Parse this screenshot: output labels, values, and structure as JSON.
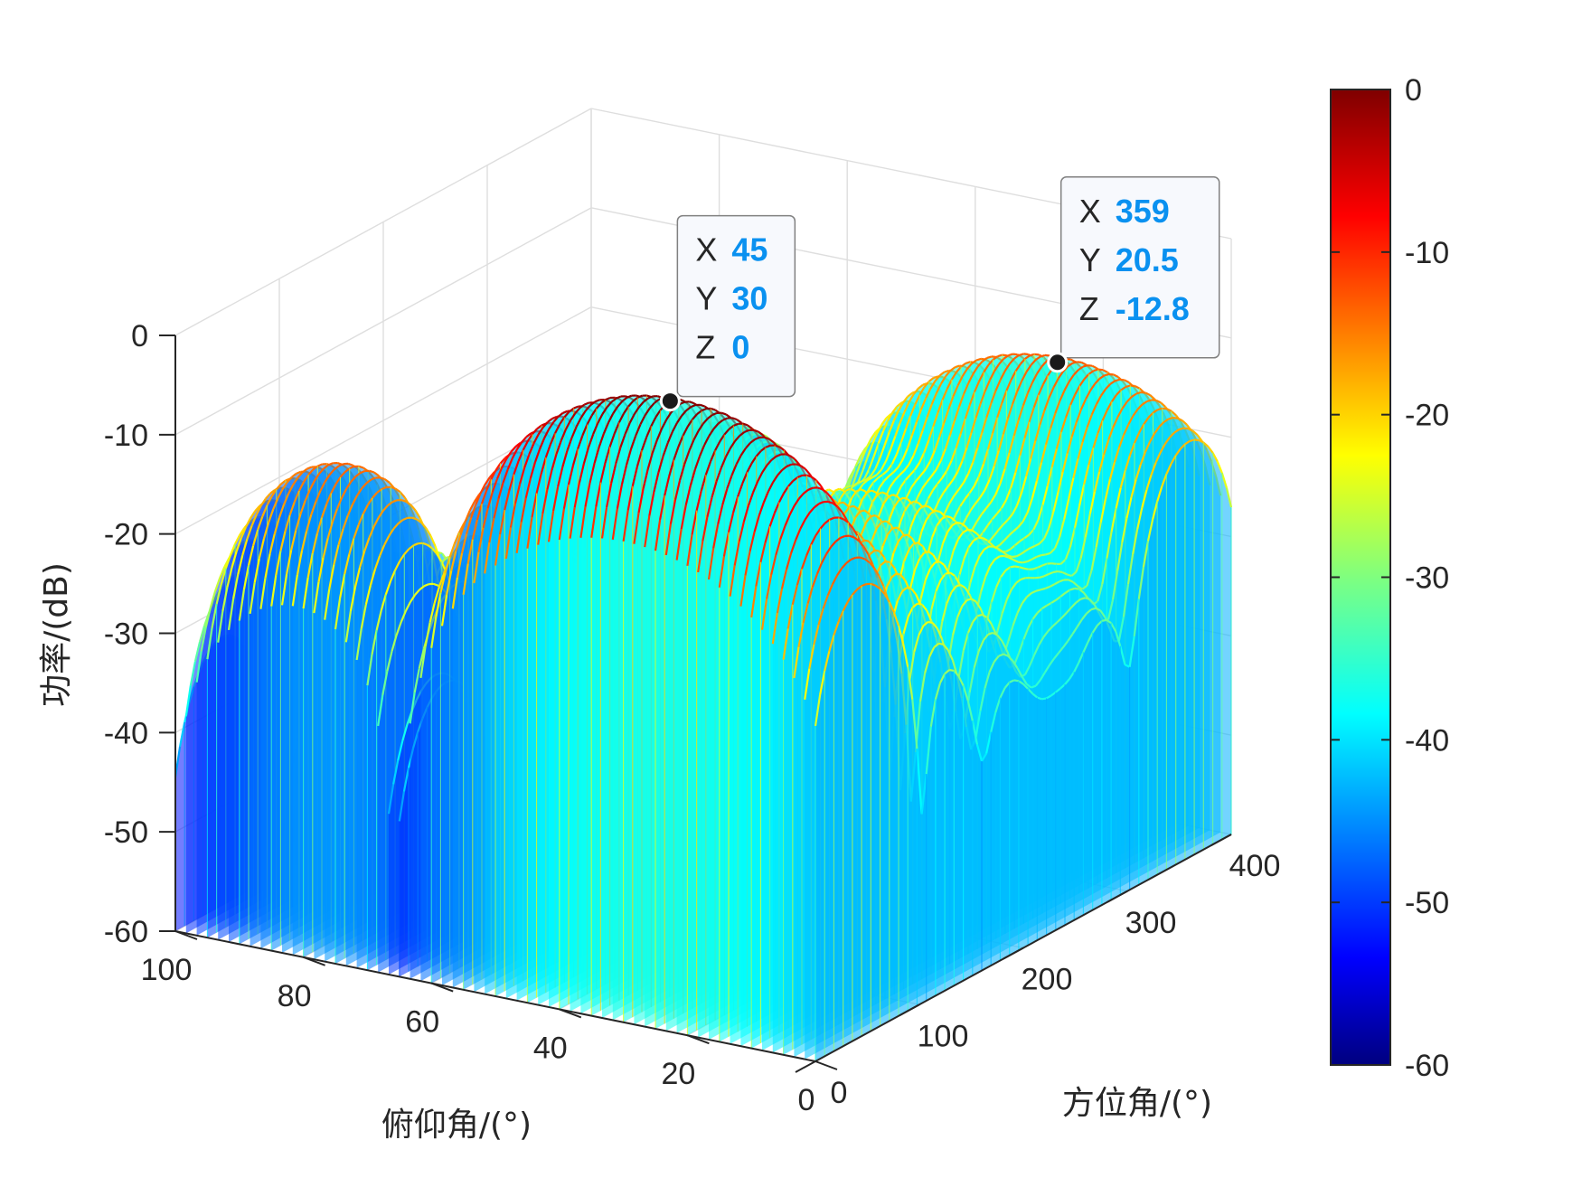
{
  "chart_data": {
    "type": "surface",
    "title": "",
    "xlabel": "方位角/(°)",
    "ylabel": "俯仰角/(°)",
    "zlabel": "功率/(dB)",
    "xlim": [
      0,
      400
    ],
    "ylim": [
      0,
      100
    ],
    "zlim": [
      -60,
      0
    ],
    "x_ticks": [
      "0",
      "100",
      "200",
      "300",
      "400"
    ],
    "y_ticks": [
      "0",
      "20",
      "40",
      "60",
      "80",
      "100"
    ],
    "z_ticks": [
      "0",
      "-10",
      "-20",
      "-30",
      "-40",
      "-50",
      "-60"
    ],
    "colorbar": {
      "colormap": "jet",
      "ticks": [
        "0",
        "-10",
        "-20",
        "-30",
        "-40",
        "-50",
        "-60"
      ],
      "range": [
        -60,
        0
      ]
    },
    "grid": true,
    "peaks": [
      {
        "azimuth": 45,
        "elevation": 30,
        "power_db": 0
      },
      {
        "azimuth": 359,
        "elevation": 20.5,
        "power_db": -12.8
      }
    ],
    "datatips": [
      {
        "x_key": "X",
        "x": "45",
        "y_key": "Y",
        "y": "30",
        "z_key": "Z",
        "z": "0"
      },
      {
        "x_key": "X",
        "x": "359",
        "y_key": "Y",
        "y": "20.5",
        "z_key": "Z",
        "z": "-12.8"
      }
    ]
  },
  "colors": {
    "datatip_value": "#0a91f0",
    "axis": "#262626",
    "grid": "#dedede",
    "background": "#ffffff"
  }
}
